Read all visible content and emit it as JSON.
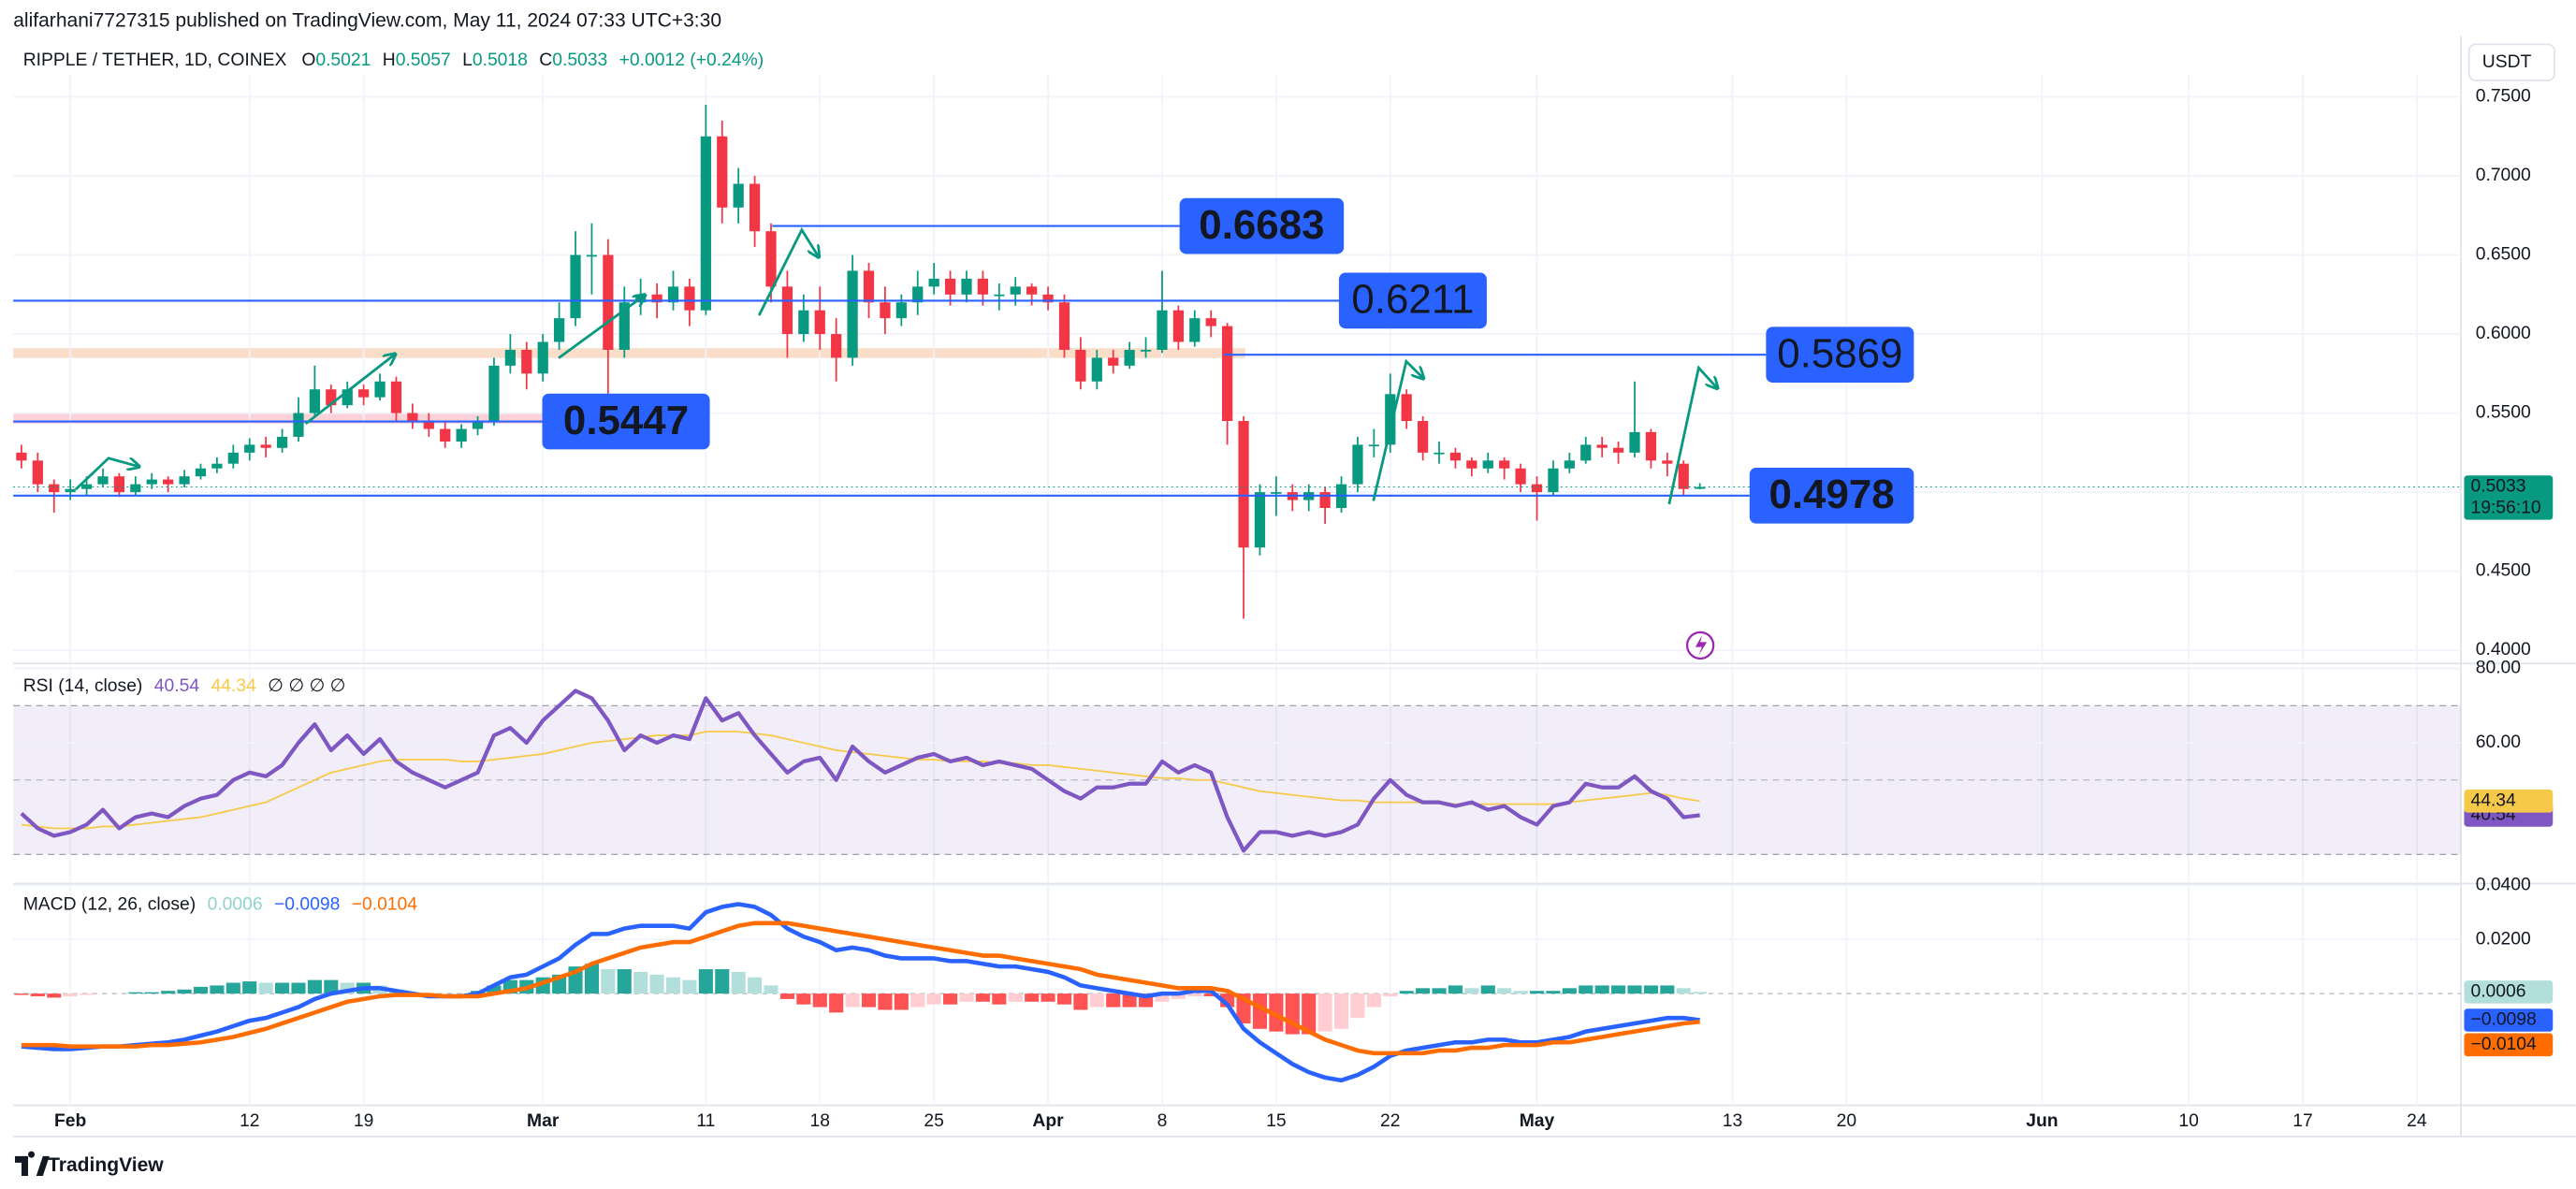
{
  "header": {
    "published": "alifarhani7727315 published on TradingView.com, May 11, 2024 07:33 UTC+3:30",
    "symbol": "RIPPLE / TETHER, 1D, COINEX",
    "ohlc_labels": [
      "O",
      "H",
      "L",
      "C"
    ],
    "change": "+0.0012 (+0.24%)",
    "currency": "USDT",
    "countdown": "19:56:10",
    "brand": "TradingView"
  },
  "chart_data": [
    {
      "type": "candlestick",
      "up_color": "#089981",
      "down_color": "#f23645",
      "xlim": [
        -0.5,
        149.7
      ],
      "xticks": [
        {
          "value": 3,
          "label": "Feb"
        },
        {
          "value": 14,
          "label": "12"
        },
        {
          "value": 21,
          "label": "19"
        },
        {
          "value": 32,
          "label": "Mar"
        },
        {
          "value": 42,
          "label": "11"
        },
        {
          "value": 49,
          "label": "18"
        },
        {
          "value": 56,
          "label": "25"
        },
        {
          "value": 63,
          "label": "Apr"
        },
        {
          "value": 70,
          "label": "8"
        },
        {
          "value": 77,
          "label": "15"
        },
        {
          "value": 84,
          "label": "22"
        },
        {
          "value": 93,
          "label": "May"
        },
        {
          "value": 105,
          "label": "13"
        },
        {
          "value": 112,
          "label": "20"
        },
        {
          "value": 124,
          "label": "Jun"
        },
        {
          "value": 133,
          "label": "10"
        },
        {
          "value": 140,
          "label": "17"
        },
        {
          "value": 147,
          "label": "24"
        }
      ],
      "ylim": [
        0.3927,
        0.7645
      ],
      "yticks": [
        {
          "value": 0.4,
          "label": "0.4000"
        },
        {
          "value": 0.45,
          "label": "0.4500"
        },
        {
          "value": 0.5,
          "label": "0.5000"
        },
        {
          "value": 0.55,
          "label": "0.5500"
        },
        {
          "value": 0.6,
          "label": "0.6000"
        },
        {
          "value": 0.65,
          "label": "0.6500"
        },
        {
          "value": 0.7,
          "label": "0.7000"
        },
        {
          "value": 0.75,
          "label": "0.7500"
        }
      ],
      "levels": [
        0.6683,
        0.6211,
        0.5869,
        0.5447,
        0.4978
      ],
      "level_color": "#2962ff",
      "open": [
        0.525,
        0.52,
        0.505,
        0.5,
        0.502,
        0.505,
        0.51,
        0.5,
        0.505,
        0.508,
        0.505,
        0.51,
        0.515,
        0.518,
        0.525,
        0.53,
        0.528,
        0.535,
        0.55,
        0.565,
        0.555,
        0.565,
        0.56,
        0.57,
        0.55,
        0.545,
        0.54,
        0.532,
        0.54,
        0.545,
        0.58,
        0.59,
        0.575,
        0.595,
        0.61,
        0.65,
        0.65,
        0.59,
        0.62,
        0.625,
        0.62,
        0.63,
        0.615,
        0.725,
        0.68,
        0.695,
        0.665,
        0.63,
        0.6,
        0.615,
        0.6,
        0.585,
        0.64,
        0.62,
        0.61,
        0.62,
        0.63,
        0.635,
        0.625,
        0.635,
        0.625,
        0.625,
        0.63,
        0.625,
        0.62,
        0.59,
        0.57,
        0.585,
        0.58,
        0.59,
        0.59,
        0.615,
        0.595,
        0.61,
        0.605,
        0.545,
        0.465,
        0.5,
        0.5,
        0.495,
        0.5,
        0.49,
        0.505,
        0.53,
        0.53,
        0.562,
        0.545,
        0.525,
        0.525,
        0.52,
        0.515,
        0.52,
        0.515,
        0.505,
        0.5,
        0.515,
        0.52,
        0.53,
        0.528,
        0.525,
        0.538,
        0.52,
        0.518,
        0.5021
      ],
      "high": [
        0.53,
        0.525,
        0.508,
        0.508,
        0.51,
        0.515,
        0.512,
        0.51,
        0.512,
        0.51,
        0.514,
        0.518,
        0.522,
        0.53,
        0.534,
        0.535,
        0.54,
        0.56,
        0.58,
        0.568,
        0.57,
        0.568,
        0.575,
        0.573,
        0.556,
        0.55,
        0.545,
        0.543,
        0.548,
        0.585,
        0.6,
        0.595,
        0.6,
        0.62,
        0.665,
        0.67,
        0.66,
        0.63,
        0.635,
        0.632,
        0.64,
        0.635,
        0.745,
        0.735,
        0.705,
        0.7,
        0.67,
        0.64,
        0.625,
        0.63,
        0.61,
        0.65,
        0.645,
        0.63,
        0.625,
        0.64,
        0.645,
        0.64,
        0.64,
        0.64,
        0.632,
        0.636,
        0.632,
        0.63,
        0.625,
        0.598,
        0.59,
        0.59,
        0.595,
        0.598,
        0.64,
        0.618,
        0.615,
        0.615,
        0.607,
        0.548,
        0.505,
        0.51,
        0.505,
        0.505,
        0.503,
        0.51,
        0.535,
        0.54,
        0.575,
        0.565,
        0.548,
        0.532,
        0.528,
        0.522,
        0.525,
        0.522,
        0.518,
        0.51,
        0.52,
        0.525,
        0.535,
        0.535,
        0.532,
        0.57,
        0.54,
        0.525,
        0.52,
        0.5057
      ],
      "low": [
        0.515,
        0.5,
        0.487,
        0.495,
        0.498,
        0.503,
        0.497,
        0.498,
        0.502,
        0.5,
        0.503,
        0.508,
        0.512,
        0.515,
        0.52,
        0.522,
        0.525,
        0.532,
        0.548,
        0.55,
        0.553,
        0.555,
        0.558,
        0.545,
        0.54,
        0.535,
        0.528,
        0.528,
        0.536,
        0.542,
        0.575,
        0.565,
        0.57,
        0.59,
        0.605,
        0.625,
        0.545,
        0.585,
        0.612,
        0.61,
        0.615,
        0.605,
        0.612,
        0.67,
        0.67,
        0.655,
        0.62,
        0.585,
        0.595,
        0.59,
        0.57,
        0.58,
        0.61,
        0.6,
        0.605,
        0.612,
        0.625,
        0.618,
        0.62,
        0.618,
        0.615,
        0.618,
        0.618,
        0.615,
        0.585,
        0.565,
        0.565,
        0.575,
        0.578,
        0.585,
        0.588,
        0.59,
        0.592,
        0.598,
        0.53,
        0.42,
        0.46,
        0.485,
        0.488,
        0.488,
        0.48,
        0.487,
        0.5,
        0.522,
        0.525,
        0.54,
        0.52,
        0.518,
        0.515,
        0.51,
        0.512,
        0.508,
        0.5,
        0.482,
        0.498,
        0.512,
        0.518,
        0.522,
        0.518,
        0.522,
        0.515,
        0.51,
        0.498,
        0.5018
      ],
      "close": [
        0.52,
        0.505,
        0.5,
        0.502,
        0.505,
        0.51,
        0.5,
        0.505,
        0.508,
        0.505,
        0.51,
        0.515,
        0.518,
        0.525,
        0.53,
        0.528,
        0.535,
        0.55,
        0.565,
        0.555,
        0.565,
        0.56,
        0.57,
        0.55,
        0.545,
        0.54,
        0.532,
        0.54,
        0.545,
        0.58,
        0.59,
        0.575,
        0.595,
        0.61,
        0.65,
        0.65,
        0.59,
        0.62,
        0.625,
        0.62,
        0.63,
        0.615,
        0.725,
        0.68,
        0.695,
        0.665,
        0.63,
        0.6,
        0.615,
        0.6,
        0.585,
        0.64,
        0.62,
        0.61,
        0.62,
        0.63,
        0.635,
        0.625,
        0.635,
        0.625,
        0.625,
        0.63,
        0.625,
        0.62,
        0.59,
        0.57,
        0.585,
        0.58,
        0.59,
        0.59,
        0.615,
        0.595,
        0.61,
        0.605,
        0.545,
        0.465,
        0.5,
        0.5,
        0.495,
        0.5,
        0.49,
        0.505,
        0.53,
        0.53,
        0.562,
        0.545,
        0.525,
        0.525,
        0.52,
        0.515,
        0.52,
        0.515,
        0.505,
        0.5,
        0.515,
        0.52,
        0.53,
        0.528,
        0.525,
        0.538,
        0.52,
        0.518,
        0.502,
        0.5033
      ]
    },
    {
      "type": "line",
      "title": "RSI (14, close)",
      "extra": "∅ ∅ ∅ ∅",
      "xlim": [
        -0.5,
        149.7
      ],
      "ylim": [
        22.6,
        80.9
      ],
      "yticks": [
        {
          "value": 80,
          "label": "80.00"
        },
        {
          "value": 60,
          "label": "60.00"
        }
      ],
      "band": [
        30,
        70
      ],
      "midline": 50,
      "band_color": "#7e57c2",
      "series": [
        {
          "color": "#7e57c2",
          "values": [
            41,
            37,
            35,
            36,
            38,
            42,
            37,
            40,
            41,
            40,
            43,
            45,
            46,
            50,
            52,
            51,
            54,
            60,
            65,
            58,
            62,
            57,
            61,
            55,
            52,
            50,
            48,
            50,
            52,
            62,
            64,
            60,
            66,
            70,
            74,
            72,
            66,
            58,
            62,
            60,
            62,
            61,
            72,
            66,
            68,
            62,
            57,
            52,
            55,
            56,
            50,
            59,
            55,
            52,
            54,
            56,
            57,
            55,
            56,
            54,
            55,
            54,
            53,
            50,
            47,
            45,
            48,
            48,
            49,
            49,
            55,
            52,
            54,
            52,
            40,
            31,
            36,
            36,
            35,
            36,
            35,
            36,
            38,
            45,
            50,
            46,
            44,
            44,
            43,
            44,
            42,
            43,
            40,
            38,
            43,
            44,
            49,
            48,
            48,
            51,
            47,
            45,
            40,
            40.54
          ]
        },
        {
          "color": "#f7c948",
          "values": [
            38,
            37.5,
            37,
            37,
            37,
            37.5,
            37.5,
            38,
            38.5,
            39,
            39.5,
            40,
            41,
            42,
            43,
            44,
            46,
            48,
            50,
            52,
            53,
            54,
            55,
            55.5,
            55.5,
            55.5,
            55.5,
            55,
            55,
            55.5,
            56,
            56.5,
            57,
            58,
            59,
            60,
            60.5,
            61,
            61.5,
            62,
            62,
            62,
            63,
            63,
            63,
            62.5,
            62,
            61,
            60,
            59,
            58,
            57.5,
            57,
            56.5,
            56,
            55.5,
            55.5,
            55,
            55,
            55,
            54.5,
            54.5,
            54,
            54,
            53.5,
            53,
            52.5,
            52,
            51.5,
            51,
            50.5,
            50.5,
            50,
            50,
            49,
            48,
            47,
            46.5,
            46,
            45.5,
            45,
            44.5,
            44.5,
            44,
            44,
            44,
            44,
            44,
            43.5,
            43.5,
            43.5,
            43.5,
            43.5,
            43.5,
            43.5,
            44,
            44.5,
            45,
            45.5,
            46,
            46.5,
            46,
            45,
            44.34
          ]
        }
      ]
    },
    {
      "type": "macd",
      "title": "MACD (12, 26, close)",
      "xlim": [
        -0.5,
        149.7
      ],
      "ylim": [
        -0.0412,
        0.04
      ],
      "yticks": [
        {
          "value": 0.04,
          "label": "0.0400"
        },
        {
          "value": 0.02,
          "label": "0.0200"
        }
      ],
      "series": [
        {
          "type": "bar",
          "colors": [
            "#26a69a",
            "#b2dfdb",
            "#ff5252",
            "#ffcdd2"
          ],
          "values": [
            -0.0005,
            -0.001,
            -0.0015,
            -0.001,
            -0.0005,
            0,
            0,
            0.0005,
            0.0005,
            0.001,
            0.0015,
            0.0025,
            0.003,
            0.004,
            0.0045,
            0.004,
            0.004,
            0.004,
            0.005,
            0.005,
            0.004,
            0.004,
            0.003,
            0.0015,
            0.0005,
            -0.0005,
            0,
            0,
            0.001,
            0.003,
            0.005,
            0.005,
            0.006,
            0.007,
            0.01,
            0.011,
            0.009,
            0.009,
            0.008,
            0.007,
            0.006,
            0.005,
            0.009,
            0.009,
            0.008,
            0.006,
            0.003,
            -0.002,
            -0.004,
            -0.005,
            -0.007,
            -0.005,
            -0.005,
            -0.006,
            -0.006,
            -0.005,
            -0.004,
            -0.004,
            -0.003,
            -0.003,
            -0.004,
            -0.003,
            -0.003,
            -0.003,
            -0.004,
            -0.006,
            -0.005,
            -0.005,
            -0.005,
            -0.005,
            -0.003,
            -0.002,
            -0.001,
            -0.001,
            -0.005,
            -0.011,
            -0.013,
            -0.014,
            -0.015,
            -0.015,
            -0.014,
            -0.013,
            -0.009,
            -0.005,
            -0.001,
            0.001,
            0.002,
            0.002,
            0.003,
            0.002,
            0.003,
            0.002,
            0.001,
            0.001,
            0.001,
            0.002,
            0.003,
            0.003,
            0.003,
            0.003,
            0.003,
            0.003,
            0.002,
            0.0006
          ]
        },
        {
          "type": "line",
          "color": "#2962ff",
          "last_label": "−0.0098",
          "values": [
            -0.0195,
            -0.02,
            -0.0205,
            -0.0205,
            -0.02,
            -0.0195,
            -0.0195,
            -0.019,
            -0.0185,
            -0.018,
            -0.017,
            -0.0155,
            -0.014,
            -0.012,
            -0.01,
            -0.009,
            -0.007,
            -0.005,
            -0.002,
            0.0,
            0.001,
            0.002,
            0.002,
            0.001,
            0.0,
            -0.001,
            -0.001,
            -0.001,
            0.0,
            0.003,
            0.006,
            0.007,
            0.01,
            0.013,
            0.018,
            0.022,
            0.022,
            0.024,
            0.025,
            0.025,
            0.025,
            0.024,
            0.03,
            0.032,
            0.033,
            0.032,
            0.029,
            0.024,
            0.021,
            0.019,
            0.016,
            0.017,
            0.016,
            0.014,
            0.013,
            0.013,
            0.013,
            0.012,
            0.012,
            0.011,
            0.01,
            0.01,
            0.009,
            0.008,
            0.006,
            0.003,
            0.002,
            0.001,
            0.0,
            -0.001,
            0.0,
            0.0,
            0.001,
            0.001,
            -0.004,
            -0.013,
            -0.018,
            -0.022,
            -0.026,
            -0.029,
            -0.031,
            -0.032,
            -0.03,
            -0.027,
            -0.023,
            -0.021,
            -0.02,
            -0.019,
            -0.018,
            -0.018,
            -0.017,
            -0.017,
            -0.018,
            -0.018,
            -0.017,
            -0.016,
            -0.014,
            -0.013,
            -0.012,
            -0.011,
            -0.01,
            -0.009,
            -0.009,
            -0.0098
          ]
        },
        {
          "type": "line",
          "color": "#ff6d00",
          "last_label": "−0.0104",
          "values": [
            -0.019,
            -0.019,
            -0.019,
            -0.0195,
            -0.0195,
            -0.0195,
            -0.0195,
            -0.0195,
            -0.019,
            -0.019,
            -0.0185,
            -0.018,
            -0.017,
            -0.016,
            -0.0145,
            -0.013,
            -0.011,
            -0.009,
            -0.007,
            -0.005,
            -0.003,
            -0.002,
            -0.001,
            -0.0005,
            -0.0005,
            -0.0005,
            -0.001,
            -0.001,
            -0.001,
            0.0,
            0.001,
            0.002,
            0.004,
            0.006,
            0.008,
            0.011,
            0.013,
            0.015,
            0.017,
            0.018,
            0.019,
            0.019,
            0.021,
            0.023,
            0.025,
            0.026,
            0.026,
            0.026,
            0.025,
            0.024,
            0.023,
            0.022,
            0.021,
            0.02,
            0.019,
            0.018,
            0.017,
            0.016,
            0.015,
            0.014,
            0.014,
            0.013,
            0.012,
            0.011,
            0.01,
            0.009,
            0.007,
            0.006,
            0.005,
            0.004,
            0.003,
            0.002,
            0.002,
            0.002,
            0.001,
            -0.002,
            -0.005,
            -0.008,
            -0.011,
            -0.014,
            -0.017,
            -0.019,
            -0.021,
            -0.022,
            -0.022,
            -0.022,
            -0.022,
            -0.021,
            -0.021,
            -0.02,
            -0.02,
            -0.019,
            -0.019,
            -0.019,
            -0.018,
            -0.018,
            -0.017,
            -0.016,
            -0.015,
            -0.014,
            -0.013,
            -0.012,
            -0.011,
            -0.0104
          ]
        }
      ]
    }
  ]
}
